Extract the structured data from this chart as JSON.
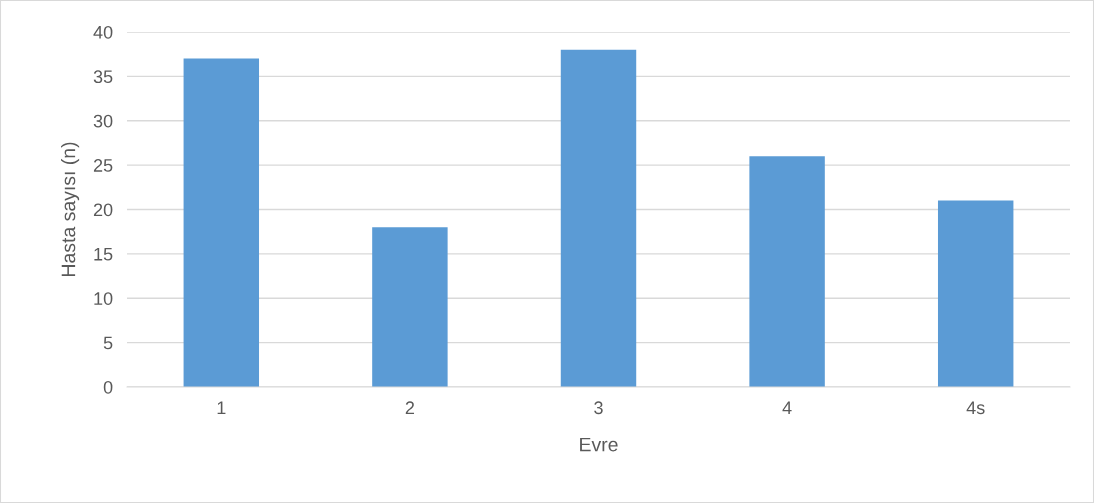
{
  "chart_data": {
    "type": "bar",
    "xlabel": "Evre",
    "ylabel": "Hasta sayısı (n)",
    "categories": [
      "1",
      "2",
      "3",
      "4",
      "4s"
    ],
    "values": [
      37,
      18,
      38,
      26,
      21
    ],
    "color": "#5b9bd5",
    "ylim": [
      0,
      40
    ],
    "yticks": [
      0,
      5,
      10,
      15,
      20,
      25,
      30,
      35,
      40
    ],
    "grid": "y"
  }
}
